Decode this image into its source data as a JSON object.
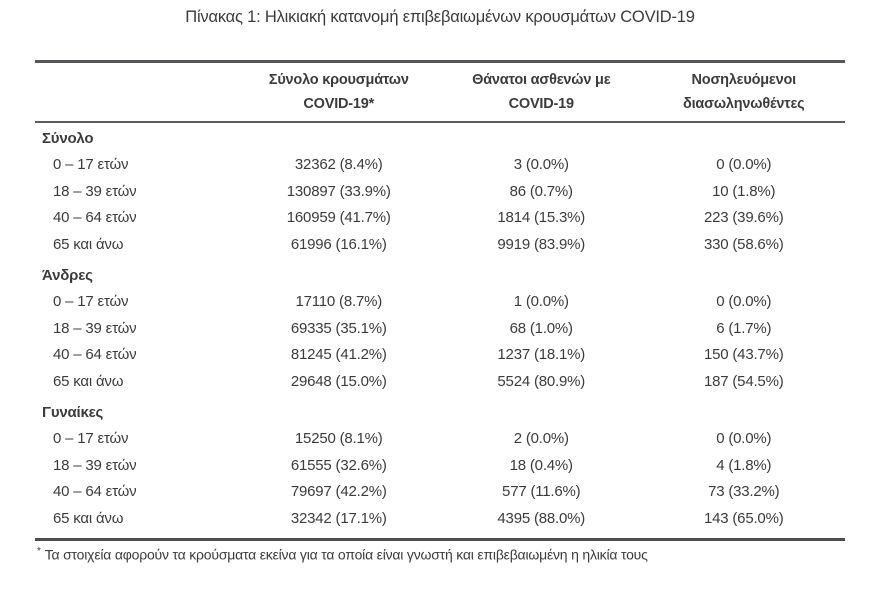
{
  "page": {
    "title": "Πίνακας 1: Ηλικιακή κατανομή επιβεβαιωμένων κρουσμάτων COVID-19"
  },
  "colors": {
    "text": "#3b3c3e",
    "rule_dark": "#4c4d51",
    "rule_mid": "#5c5d61",
    "background": "#ffffff"
  },
  "table": {
    "headers": {
      "cases": "Σύνολο κρουσμάτων\nCOVID-19*",
      "deaths": "Θάνατοι ασθενών με\nCOVID-19",
      "intubated": "Νοσηλευόμενοι\nδιασωληνωθέντες"
    },
    "sections": [
      {
        "name": "Σύνολο",
        "rows": [
          {
            "label": "0 – 17 ετών",
            "cases": "32362 (8.4%)",
            "deaths": "3 (0.0%)",
            "intubated": "0 (0.0%)"
          },
          {
            "label": "18 – 39 ετών",
            "cases": "130897 (33.9%)",
            "deaths": "86 (0.7%)",
            "intubated": "10 (1.8%)"
          },
          {
            "label": "40 – 64 ετών",
            "cases": "160959 (41.7%)",
            "deaths": "1814 (15.3%)",
            "intubated": "223 (39.6%)"
          },
          {
            "label": "65 και άνω",
            "cases": "61996 (16.1%)",
            "deaths": "9919 (83.9%)",
            "intubated": "330 (58.6%)"
          }
        ]
      },
      {
        "name": "Άνδρες",
        "rows": [
          {
            "label": "0 – 17 ετών",
            "cases": "17110 (8.7%)",
            "deaths": "1 (0.0%)",
            "intubated": "0 (0.0%)"
          },
          {
            "label": "18 – 39 ετών",
            "cases": "69335 (35.1%)",
            "deaths": "68 (1.0%)",
            "intubated": "6 (1.7%)"
          },
          {
            "label": "40 – 64 ετών",
            "cases": "81245 (41.2%)",
            "deaths": "1237 (18.1%)",
            "intubated": "150 (43.7%)"
          },
          {
            "label": "65 και άνω",
            "cases": "29648 (15.0%)",
            "deaths": "5524 (80.9%)",
            "intubated": "187 (54.5%)"
          }
        ]
      },
      {
        "name": "Γυναίκες",
        "rows": [
          {
            "label": "0 – 17 ετών",
            "cases": "15250 (8.1%)",
            "deaths": "2 (0.0%)",
            "intubated": "0 (0.0%)"
          },
          {
            "label": "18 – 39 ετών",
            "cases": "61555 (32.6%)",
            "deaths": "18 (0.4%)",
            "intubated": "4 (1.8%)"
          },
          {
            "label": "40 – 64 ετών",
            "cases": "79697 (42.2%)",
            "deaths": "577 (11.6%)",
            "intubated": "73 (33.2%)"
          },
          {
            "label": "65 και άνω",
            "cases": "32342 (17.1%)",
            "deaths": "4395 (88.0%)",
            "intubated": "143 (65.0%)"
          }
        ]
      }
    ]
  },
  "footnote": {
    "marker": "*",
    "text": "Τα στοιχεία αφορούν τα κρούσματα εκείνα για τα οποία είναι γνωστή και επιβεβαιωμένη η ηλικία τους"
  }
}
